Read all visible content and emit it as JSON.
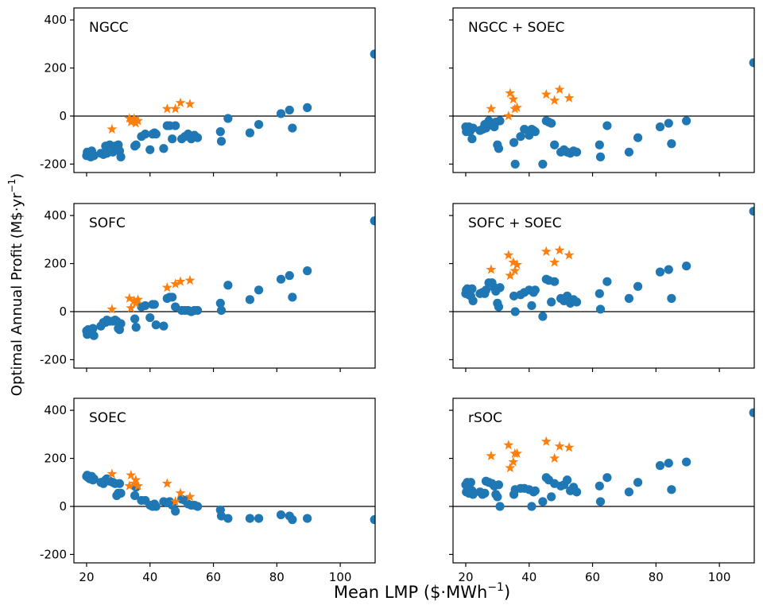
{
  "labels": {
    "xlabel": "Mean LMP ($·MWh",
    "xlabel_sup": "−1",
    "xlabel_end": ")",
    "ylabel": "Optimal Annual Profit (M$·yr",
    "ylabel_sup": "−1",
    "ylabel_end": ")"
  },
  "colors": {
    "circle": "#1f77b4",
    "star": "#ff7f0e"
  },
  "chart_data": {
    "type": "scatter",
    "layout": "3x2 grid of subplots, shared x and y axes",
    "xlim": [
      16,
      111
    ],
    "ylim": [
      -235,
      450
    ],
    "xticks": [
      20,
      40,
      60,
      80,
      100
    ],
    "yticks": [
      -200,
      0,
      200,
      400
    ],
    "zero_line": true,
    "grid": false,
    "lmp": [
      20.0,
      20.2,
      20.5,
      21.0,
      21.3,
      21.6,
      22.0,
      22.3,
      24.5,
      25.3,
      26.0,
      26.4,
      27.3,
      28.3,
      29.0,
      29.5,
      30.0,
      30.4,
      30.8,
      35.2,
      35.6,
      37.3,
      38.5,
      40.0,
      40.8,
      41.4,
      41.9,
      44.3,
      45.4,
      46.2,
      47.0,
      48.0,
      50.0,
      51.0,
      52.0,
      53.0,
      54.0,
      55.0,
      62.2,
      62.5,
      64.6,
      71.5,
      74.3,
      81.3,
      84.0,
      84.9,
      89.6,
      110.8
    ],
    "lmp_star": [
      28.0,
      33.5,
      34.0,
      35.0,
      35.5,
      36.2,
      45.4,
      48.0,
      49.6,
      52.6
    ],
    "panels": [
      {
        "title": "NGCC",
        "circles": [
          -165,
          -150,
          -160,
          -155,
          -170,
          -145,
          -160,
          -165,
          -155,
          -160,
          -125,
          -155,
          -120,
          -150,
          -125,
          -140,
          -120,
          -145,
          -170,
          -125,
          -120,
          -85,
          -75,
          -140,
          -75,
          -70,
          -75,
          -135,
          -40,
          -40,
          -95,
          -40,
          -95,
          -85,
          -75,
          -95,
          -80,
          -90,
          -65,
          -105,
          -10,
          -70,
          -35,
          10,
          25,
          -50,
          35,
          258
        ],
        "stars": [
          -55,
          -10,
          -25,
          -10,
          -30,
          -20,
          30,
          30,
          55,
          50
        ]
      },
      {
        "title": "NGCC + SOEC",
        "circles": [
          -45,
          -65,
          -55,
          -45,
          -65,
          -50,
          -95,
          -50,
          -60,
          -55,
          -35,
          -50,
          -20,
          -30,
          -45,
          -25,
          -120,
          -135,
          -20,
          -110,
          -200,
          -85,
          -55,
          -80,
          -55,
          -60,
          -65,
          -200,
          -20,
          -25,
          -30,
          -120,
          -150,
          -140,
          -150,
          -155,
          -145,
          -150,
          -120,
          -170,
          -40,
          -150,
          -90,
          -45,
          -30,
          -115,
          -20,
          222
        ],
        "stars": [
          30,
          0,
          95,
          70,
          30,
          35,
          90,
          65,
          110,
          75
        ]
      },
      {
        "title": "SOFC",
        "circles": [
          -80,
          -95,
          -75,
          -90,
          -85,
          -80,
          -70,
          -100,
          -60,
          -45,
          -45,
          -35,
          -40,
          -40,
          -35,
          -40,
          -70,
          -75,
          -50,
          -30,
          -65,
          20,
          25,
          -25,
          30,
          30,
          -55,
          -60,
          55,
          60,
          60,
          20,
          5,
          5,
          5,
          0,
          5,
          5,
          35,
          5,
          110,
          50,
          90,
          135,
          150,
          60,
          170,
          378
        ],
        "stars": [
          10,
          55,
          15,
          45,
          35,
          50,
          100,
          115,
          125,
          130
        ]
      },
      {
        "title": "SOFC + SOEC",
        "circles": [
          75,
          90,
          95,
          70,
          85,
          65,
          95,
          45,
          75,
          80,
          75,
          90,
          120,
          120,
          100,
          85,
          35,
          20,
          100,
          65,
          0,
          70,
          80,
          90,
          25,
          80,
          90,
          -20,
          135,
          130,
          40,
          125,
          55,
          45,
          65,
          35,
          50,
          40,
          75,
          10,
          125,
          55,
          105,
          165,
          175,
          55,
          190,
          418
        ],
        "stars": [
          175,
          235,
          150,
          205,
          170,
          195,
          250,
          205,
          255,
          235
        ]
      },
      {
        "title": "SOEC",
        "circles": [
          125,
          130,
          120,
          115,
          120,
          125,
          110,
          115,
          100,
          95,
          110,
          115,
          105,
          100,
          95,
          45,
          55,
          95,
          55,
          45,
          80,
          25,
          25,
          5,
          0,
          10,
          0,
          20,
          15,
          20,
          5,
          -20,
          30,
          25,
          10,
          5,
          5,
          0,
          -15,
          -40,
          -50,
          -50,
          -50,
          -35,
          -40,
          -55,
          -50,
          -55
        ],
        "stars": [
          135,
          85,
          130,
          95,
          110,
          85,
          95,
          20,
          55,
          40
        ]
      },
      {
        "title": "rSOC",
        "circles": [
          90,
          60,
          100,
          55,
          95,
          100,
          65,
          50,
          60,
          50,
          55,
          105,
          100,
          95,
          85,
          50,
          40,
          90,
          0,
          50,
          70,
          75,
          75,
          70,
          0,
          60,
          65,
          20,
          120,
          110,
          40,
          95,
          85,
          90,
          110,
          65,
          80,
          60,
          85,
          20,
          120,
          60,
          100,
          170,
          180,
          70,
          185,
          390
        ],
        "stars": [
          210,
          255,
          160,
          185,
          220,
          220,
          270,
          200,
          250,
          245
        ]
      }
    ]
  }
}
